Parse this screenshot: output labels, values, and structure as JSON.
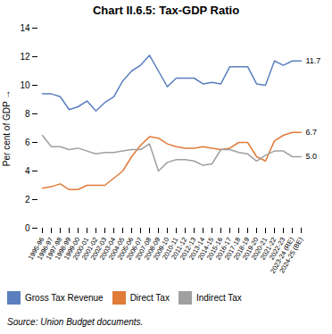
{
  "chart_data": {
    "type": "line",
    "title": "Chart II.6.5: Tax-GDP Ratio",
    "ylabel": "Per cent of GDP",
    "categories": [
      "1995-96",
      "1996-97",
      "1997-98",
      "1998-99",
      "1999-00",
      "2000-01",
      "2001-02",
      "2002-03",
      "2003-04",
      "2004-05",
      "2005-06",
      "2006-07",
      "2007-08",
      "2008-09",
      "2009-10",
      "2010-11",
      "2011-12",
      "2012-13",
      "2013-14",
      "2014-15",
      "2015-16",
      "2016-17",
      "2017-18",
      "2018-19",
      "2019-20",
      "2020-21",
      "2021-22",
      "2022-23",
      "2023-24 (RE)",
      "2024-25 (BE)"
    ],
    "series": [
      {
        "name": "Gross Tax Revenue",
        "color": "#5b7fbe",
        "values": [
          9.4,
          9.4,
          9.2,
          8.3,
          8.5,
          8.9,
          8.2,
          8.8,
          9.2,
          10.3,
          11.0,
          11.4,
          12.1,
          11.0,
          9.9,
          10.5,
          10.5,
          10.5,
          10.1,
          10.2,
          10.1,
          11.3,
          11.3,
          11.3,
          10.1,
          10.0,
          11.7,
          11.4,
          11.7,
          11.7
        ]
      },
      {
        "name": "Direct Tax",
        "color": "#e07b39",
        "values": [
          2.8,
          2.9,
          3.1,
          2.7,
          2.7,
          3.0,
          3.0,
          3.0,
          3.5,
          4.0,
          5.0,
          5.8,
          6.4,
          6.3,
          5.9,
          5.7,
          5.6,
          5.6,
          5.7,
          5.6,
          5.5,
          5.6,
          6.0,
          6.0,
          5.0,
          4.7,
          6.1,
          6.5,
          6.7,
          6.7
        ]
      },
      {
        "name": "Indirect Tax",
        "color": "#a0a0a0",
        "values": [
          6.5,
          5.7,
          5.7,
          5.5,
          5.6,
          5.4,
          5.2,
          5.3,
          5.3,
          5.4,
          5.5,
          5.5,
          5.9,
          4.0,
          4.6,
          4.8,
          4.8,
          4.7,
          4.4,
          4.5,
          5.5,
          5.5,
          5.3,
          5.2,
          4.7,
          5.1,
          5.4,
          5.4,
          5.0,
          5.0
        ]
      }
    ],
    "annotations": [
      {
        "text": "11.7",
        "x": "2024-25 (BE)",
        "y": 11.7
      },
      {
        "text": "6.7",
        "x": "2024-25 (BE)",
        "y": 6.7
      },
      {
        "text": "5.0",
        "x": "2024-25 (BE)",
        "y": 5.0
      }
    ],
    "source": "Source: Union Budget documents.",
    "ylim": [
      0,
      14
    ],
    "yticks": [
      0,
      2,
      4,
      6,
      8,
      10,
      12,
      14
    ],
    "grid": false,
    "legend": "bottom"
  }
}
